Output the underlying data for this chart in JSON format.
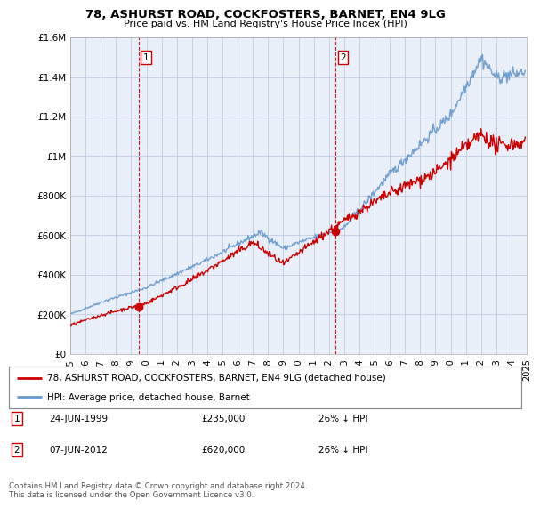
{
  "title": "78, ASHURST ROAD, COCKFOSTERS, BARNET, EN4 9LG",
  "subtitle": "Price paid vs. HM Land Registry's House Price Index (HPI)",
  "legend_line1": "78, ASHURST ROAD, COCKFOSTERS, BARNET, EN4 9LG (detached house)",
  "legend_line2": "HPI: Average price, detached house, Barnet",
  "annotation1_label": "1",
  "annotation1_date": "24-JUN-1999",
  "annotation1_price": "£235,000",
  "annotation1_hpi": "26% ↓ HPI",
  "annotation1_year": 1999.48,
  "annotation1_value": 235000,
  "annotation2_label": "2",
  "annotation2_date": "07-JUN-2012",
  "annotation2_price": "£620,000",
  "annotation2_hpi": "26% ↓ HPI",
  "annotation2_year": 2012.43,
  "annotation2_value": 620000,
  "footnote": "Contains HM Land Registry data © Crown copyright and database right 2024.\nThis data is licensed under the Open Government Licence v3.0.",
  "hpi_color": "#6699cc",
  "price_color": "#cc0000",
  "dashed_line_color": "#cc0000",
  "background_color": "#ffffff",
  "plot_bg_color": "#e8eff8",
  "grid_color": "#c0cce0",
  "ylim": [
    0,
    1600000
  ],
  "yticks": [
    0,
    200000,
    400000,
    600000,
    800000,
    1000000,
    1200000,
    1400000,
    1600000
  ],
  "ytick_labels": [
    "£0",
    "£200K",
    "£400K",
    "£600K",
    "£800K",
    "£1M",
    "£1.2M",
    "£1.4M",
    "£1.6M"
  ],
  "xmin": 1995,
  "xmax": 2025
}
